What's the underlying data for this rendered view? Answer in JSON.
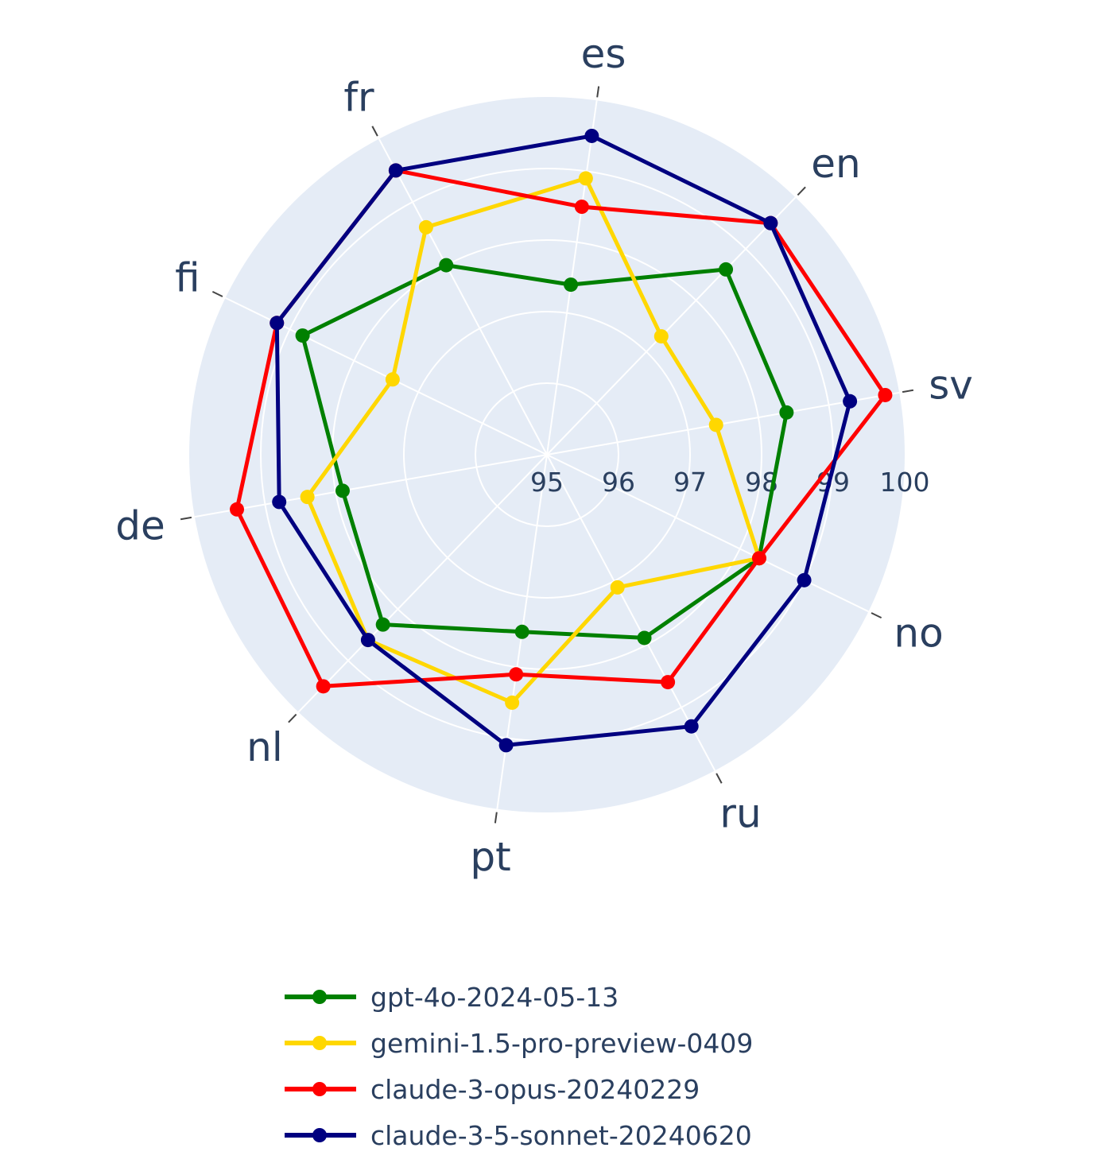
{
  "chart_data": {
    "type": "radar",
    "categories": [
      "sv",
      "en",
      "es",
      "fr",
      "fi",
      "de",
      "nl",
      "pt",
      "ru",
      "no"
    ],
    "radial_ticks": [
      "95",
      "96",
      "97",
      "98",
      "99",
      "100"
    ],
    "r_range": [
      95,
      100
    ],
    "grid": true,
    "legend_position": "bottom",
    "series": [
      {
        "name": "gpt-4o-2024-05-13",
        "color": "#008000",
        "values": [
          98.4,
          98.6,
          97.4,
          98.0,
          98.8,
          97.9,
          98.3,
          97.5,
          97.9,
          98.3
        ]
      },
      {
        "name": "gemini-1.5-pro-preview-0409",
        "color": "#FFD700",
        "values": [
          97.4,
          97.3,
          98.9,
          98.6,
          97.4,
          98.4,
          98.6,
          98.5,
          97.1,
          98.3
        ]
      },
      {
        "name": "claude-3-opus-20240229",
        "color": "#FF0000",
        "values": [
          99.8,
          99.5,
          98.5,
          99.5,
          99.2,
          99.4,
          99.5,
          98.1,
          98.6,
          98.3
        ]
      },
      {
        "name": "claude-3-5-sonnet-20240620",
        "color": "#000080",
        "values": [
          99.3,
          99.5,
          99.5,
          99.5,
          99.2,
          98.8,
          98.6,
          99.1,
          99.3,
          99.0
        ]
      }
    ]
  }
}
